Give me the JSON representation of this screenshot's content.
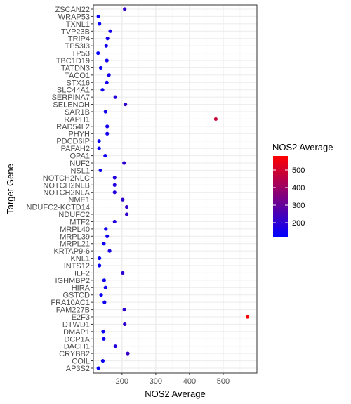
{
  "chart_data": {
    "type": "scatter",
    "title": "",
    "xlabel": "NOS2 Average",
    "ylabel": "Target Gene",
    "xlim": [
      115,
      600
    ],
    "x_ticks": [
      200,
      300,
      400,
      500
    ],
    "grid": true,
    "legend": {
      "title": "NOS2 Average",
      "placement": "right",
      "range": [
        120,
        580
      ],
      "ticks": [
        200,
        300,
        400,
        500
      ],
      "low_color": "#0000ff",
      "high_color": "#ff0000"
    },
    "categories": [
      "ZSCAN22",
      "WRAP53",
      "TXNL1",
      "TVP23B",
      "TRIP4",
      "TP53I3",
      "TP53",
      "TBC1D19",
      "TATDN3",
      "TACO1",
      "STX16",
      "SLC44A1",
      "SERPINA7",
      "SELENOH",
      "SAR1B",
      "RAPH1",
      "RAD54L2",
      "PHYH",
      "PDCD6IP",
      "PAFAH2",
      "OPA1",
      "NUF2",
      "NSL1",
      "NOTCH2NLC",
      "NOTCH2NLB",
      "NOTCH2NLA",
      "NME1",
      "NDUFC2-KCTD14",
      "NDUFC2",
      "MTF2",
      "MRPL40",
      "MRPL39",
      "MRPL21",
      "KRTAP9-6",
      "KNL1",
      "INTS12",
      "ILF2",
      "IGHMBP2",
      "HIRA",
      "GSTCD",
      "FRA10AC1",
      "FAM227B",
      "E2F3",
      "DTWD1",
      "DMAP1",
      "DCP1A",
      "DACH1",
      "CRYBB2",
      "COIL",
      "AP3S2"
    ],
    "values": [
      208,
      130,
      133,
      165,
      157,
      153,
      129,
      155,
      137,
      161,
      155,
      142,
      180,
      210,
      151,
      478,
      156,
      156,
      132,
      132,
      150,
      206,
      136,
      178,
      178,
      178,
      202,
      214,
      214,
      178,
      152,
      156,
      146,
      163,
      133,
      133,
      202,
      147,
      151,
      138,
      148,
      207,
      572,
      208,
      144,
      146,
      180,
      217,
      143,
      130
    ]
  }
}
